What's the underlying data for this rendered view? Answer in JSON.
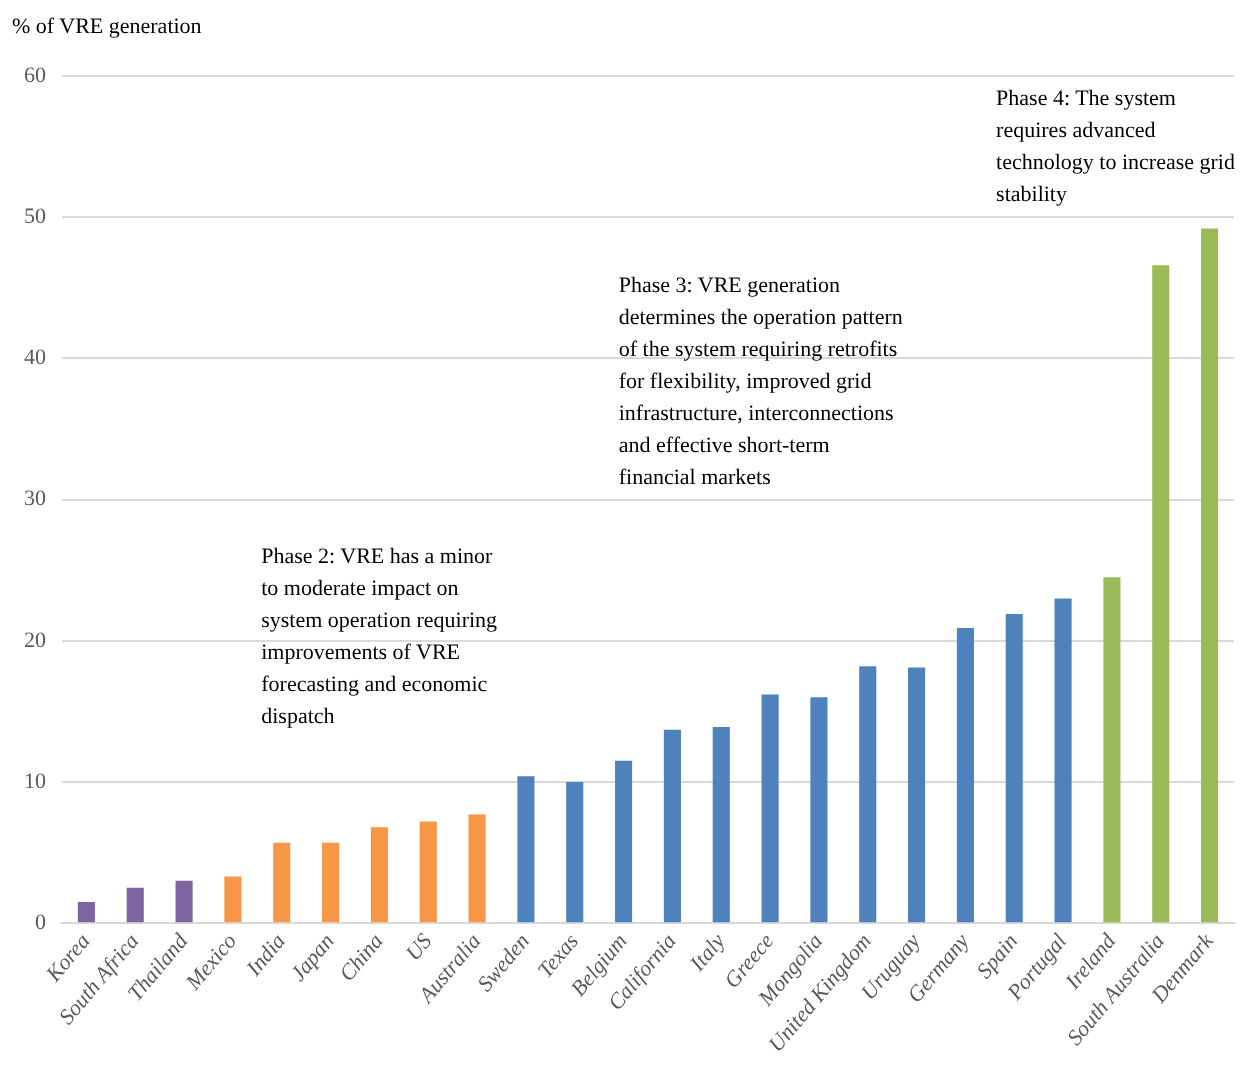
{
  "chart_data": {
    "type": "bar",
    "ylabel": "% of VRE generation",
    "categories": [
      "Korea",
      "South Africa",
      "Thailand",
      "Mexico",
      "India",
      "Japan",
      "China",
      "US",
      "Australia",
      "Sweden",
      "Texas",
      "Belgium",
      "California",
      "Italy",
      "Greece",
      "Mongolia",
      "United Kingdom",
      "Uruguay",
      "Germany",
      "Spain",
      "Portugal",
      "Ireland",
      "South Australia",
      "Denmark"
    ],
    "values": [
      1.5,
      2.5,
      3.0,
      3.3,
      5.7,
      5.7,
      6.8,
      7.2,
      7.7,
      10.4,
      10.0,
      11.5,
      13.7,
      13.9,
      16.2,
      16.0,
      18.2,
      18.1,
      20.9,
      21.9,
      23.0,
      24.5,
      46.6,
      49.2
    ],
    "colors": [
      "#8064a2",
      "#8064a2",
      "#8064a2",
      "#f79646",
      "#f79646",
      "#f79646",
      "#f79646",
      "#f79646",
      "#f79646",
      "#4f81bd",
      "#4f81bd",
      "#4f81bd",
      "#4f81bd",
      "#4f81bd",
      "#4f81bd",
      "#4f81bd",
      "#4f81bd",
      "#4f81bd",
      "#4f81bd",
      "#4f81bd",
      "#4f81bd",
      "#9bbb59",
      "#9bbb59",
      "#9bbb59"
    ],
    "ylim": [
      0,
      60
    ],
    "yticks": [
      0,
      10,
      20,
      30,
      40,
      50,
      60
    ],
    "grid": "y",
    "legend": false,
    "annotations": [
      "Phase 2: VRE has a minor\nto moderate impact on\nsystem operation requiring\nimprovements of VRE\nforecasting and economic\ndispatch",
      "Phase 3: VRE generation\ndetermines the operation pattern\nof the system requiring retrofits\nfor flexibility, improved grid\ninfrastructure, interconnections\nand effective short-term\nfinancial markets",
      "Phase 4: The system\nrequires advanced\ntechnology to increase grid\nstability"
    ]
  }
}
